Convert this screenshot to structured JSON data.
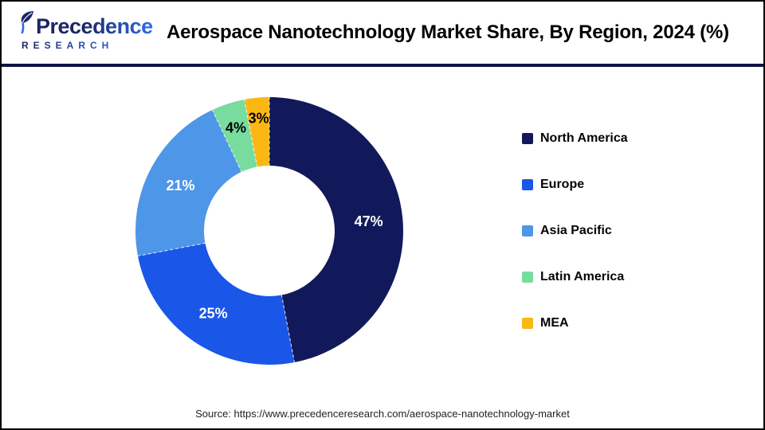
{
  "header": {
    "logo_name": "Precedence",
    "logo_subtitle": "RESEARCH",
    "title": "Aerospace Nanotechnology Market Share, By Region, 2024 (%)"
  },
  "chart_data": {
    "type": "pie",
    "subtype": "donut",
    "title": "Aerospace Nanotechnology Market Share, By Region, 2024 (%)",
    "unit": "%",
    "legend_position": "right",
    "start_angle_deg": 0,
    "direction": "clockwise",
    "inner_radius_ratio": 0.49,
    "categories": [
      "North America",
      "Europe",
      "Asia Pacific",
      "Latin America",
      "MEA"
    ],
    "values": [
      47,
      25,
      21,
      4,
      3
    ],
    "slices": [
      {
        "label": "North America",
        "value": 47,
        "display": "47%",
        "color": "#12195B",
        "label_color": "#FFFFFF",
        "label_radius_ratio": 0.745
      },
      {
        "label": "Europe",
        "value": 25,
        "display": "25%",
        "color": "#1A57E8",
        "label_color": "#FFFFFF",
        "label_radius_ratio": 0.745
      },
      {
        "label": "Asia Pacific",
        "value": 21,
        "display": "21%",
        "color": "#4E96E8",
        "label_color": "#FFFFFF",
        "label_radius_ratio": 0.745
      },
      {
        "label": "Latin America",
        "value": 4,
        "display": "4%",
        "color": "#77DC9E",
        "label_color": "#000000",
        "label_radius_ratio": 0.81
      },
      {
        "label": "MEA",
        "value": 3,
        "display": "3%",
        "color": "#FBB713",
        "label_color": "#000000",
        "label_radius_ratio": 0.845
      }
    ]
  },
  "colors": {
    "divider": "#0E1340",
    "logo_navy": "#1A2665",
    "logo_blue": "#2F6BE8"
  },
  "footer": {
    "source": "Source: https://www.precedenceresearch.com/aerospace-nanotechnology-market"
  }
}
